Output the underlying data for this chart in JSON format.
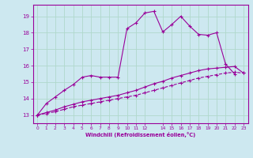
{
  "xlabel": "Windchill (Refroidissement éolien,°C)",
  "bg_color": "#cde8f0",
  "grid_color": "#b0d8cc",
  "line_color": "#990099",
  "xlim": [
    -0.5,
    23.5
  ],
  "ylim": [
    12.5,
    19.7
  ],
  "xticks": [
    0,
    1,
    2,
    3,
    4,
    5,
    6,
    7,
    8,
    9,
    10,
    11,
    12,
    14,
    15,
    16,
    17,
    18,
    19,
    20,
    21,
    22,
    23
  ],
  "yticks": [
    13,
    14,
    15,
    16,
    17,
    18,
    19
  ],
  "series1_x": [
    0,
    1,
    2,
    3,
    4,
    5,
    6,
    7,
    8,
    9,
    10,
    11,
    12,
    13,
    14,
    15,
    16,
    17,
    18,
    19,
    20,
    21,
    22
  ],
  "series1_y": [
    13.0,
    13.7,
    14.1,
    14.5,
    14.85,
    15.3,
    15.4,
    15.3,
    15.3,
    15.3,
    18.25,
    18.6,
    19.2,
    19.3,
    18.05,
    18.5,
    19.0,
    18.4,
    17.9,
    17.85,
    18.0,
    16.1,
    15.5
  ],
  "series2_x": [
    0,
    1,
    2,
    3,
    4,
    5,
    6,
    7,
    8,
    9,
    10,
    11,
    12,
    13,
    14,
    15,
    16,
    17,
    18,
    19,
    20,
    21,
    22,
    23
  ],
  "series2_y": [
    13.0,
    13.1,
    13.2,
    13.35,
    13.5,
    13.6,
    13.7,
    13.8,
    13.9,
    14.0,
    14.1,
    14.2,
    14.35,
    14.5,
    14.65,
    14.8,
    14.95,
    15.1,
    15.25,
    15.35,
    15.45,
    15.55,
    15.6,
    15.55
  ],
  "series3_x": [
    0,
    1,
    2,
    3,
    4,
    5,
    6,
    7,
    8,
    9,
    10,
    11,
    12,
    13,
    14,
    15,
    16,
    17,
    18,
    19,
    20,
    21,
    22,
    23
  ],
  "series3_y": [
    13.0,
    13.15,
    13.3,
    13.5,
    13.65,
    13.8,
    13.9,
    14.0,
    14.1,
    14.2,
    14.35,
    14.5,
    14.7,
    14.9,
    15.05,
    15.25,
    15.4,
    15.55,
    15.7,
    15.8,
    15.85,
    15.9,
    15.95,
    15.55
  ]
}
